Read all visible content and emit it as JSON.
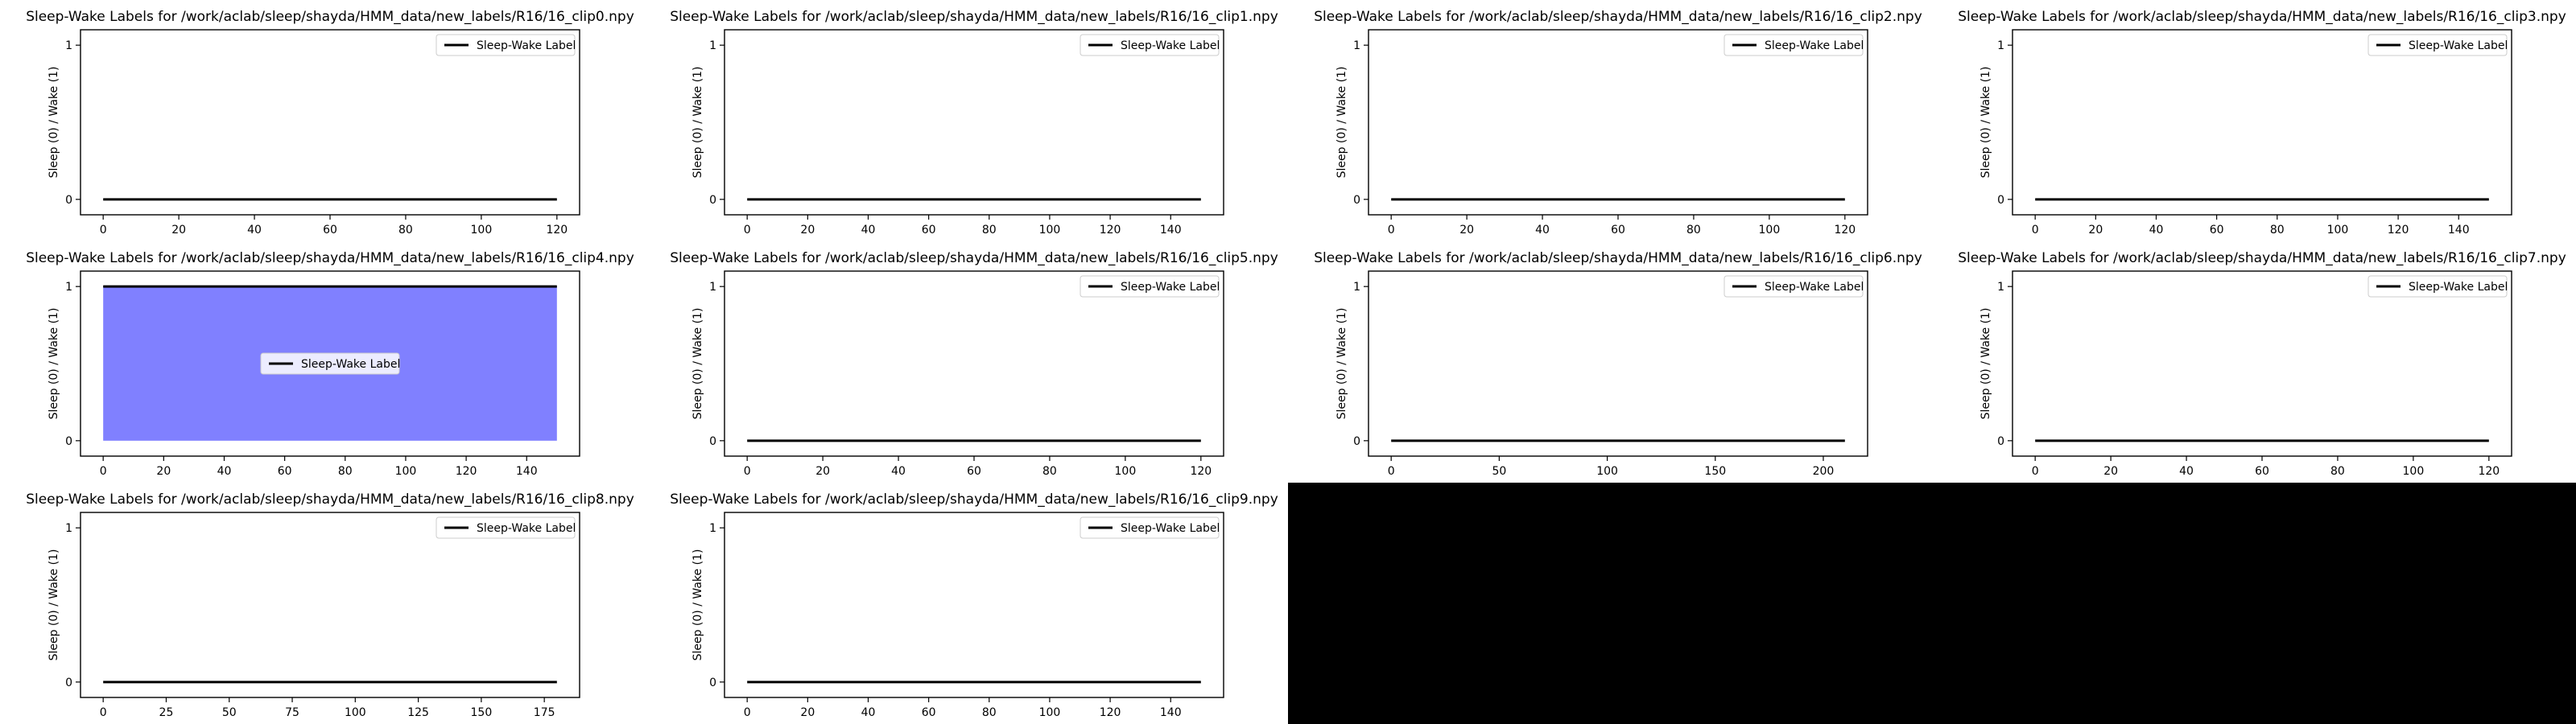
{
  "figure": {
    "background": "#ffffff",
    "mask_color": "#000000"
  },
  "chart_data": [
    {
      "type": "line",
      "title": "Sleep-Wake Labels for /work/aclab/sleep/shayda/HMM_data/new_labels/R16/16_clip0.npy",
      "ylabel": "Sleep (0) / Wake (1)",
      "xlabel": "",
      "xlim": [
        -6,
        126
      ],
      "ylim": [
        -0.1,
        1.1
      ],
      "xticks": [
        0,
        20,
        40,
        60,
        80,
        100,
        120
      ],
      "yticks": [
        0,
        1
      ],
      "legend": "top-right",
      "grid": false,
      "series": [
        {
          "name": "Sleep-Wake Label",
          "color": "#000000",
          "x": [
            0,
            120
          ],
          "y": [
            0,
            0
          ]
        }
      ],
      "fill": null
    },
    {
      "type": "line",
      "title": "Sleep-Wake Labels for /work/aclab/sleep/shayda/HMM_data/new_labels/R16/16_clip1.npy",
      "ylabel": "Sleep (0) / Wake (1)",
      "xlabel": "",
      "xlim": [
        -7.5,
        157.5
      ],
      "ylim": [
        -0.1,
        1.1
      ],
      "xticks": [
        0,
        20,
        40,
        60,
        80,
        100,
        120,
        140
      ],
      "yticks": [
        0,
        1
      ],
      "legend": "top-right",
      "grid": false,
      "series": [
        {
          "name": "Sleep-Wake Label",
          "color": "#000000",
          "x": [
            0,
            150
          ],
          "y": [
            0,
            0
          ]
        }
      ],
      "fill": null
    },
    {
      "type": "line",
      "title": "Sleep-Wake Labels for /work/aclab/sleep/shayda/HMM_data/new_labels/R16/16_clip2.npy",
      "ylabel": "Sleep (0) / Wake (1)",
      "xlabel": "",
      "xlim": [
        -6,
        126
      ],
      "ylim": [
        -0.1,
        1.1
      ],
      "xticks": [
        0,
        20,
        40,
        60,
        80,
        100,
        120
      ],
      "yticks": [
        0,
        1
      ],
      "legend": "top-right",
      "grid": false,
      "series": [
        {
          "name": "Sleep-Wake Label",
          "color": "#000000",
          "x": [
            0,
            120
          ],
          "y": [
            0,
            0
          ]
        }
      ],
      "fill": null
    },
    {
      "type": "line",
      "title": "Sleep-Wake Labels for /work/aclab/sleep/shayda/HMM_data/new_labels/R16/16_clip3.npy",
      "ylabel": "Sleep (0) / Wake (1)",
      "xlabel": "",
      "xlim": [
        -7.5,
        157.5
      ],
      "ylim": [
        -0.1,
        1.1
      ],
      "xticks": [
        0,
        20,
        40,
        60,
        80,
        100,
        120,
        140
      ],
      "yticks": [
        0,
        1
      ],
      "legend": "top-right",
      "grid": false,
      "series": [
        {
          "name": "Sleep-Wake Label",
          "color": "#000000",
          "x": [
            0,
            150
          ],
          "y": [
            0,
            0
          ]
        }
      ],
      "fill": null
    },
    {
      "type": "area",
      "title": "Sleep-Wake Labels for /work/aclab/sleep/shayda/HMM_data/new_labels/R16/16_clip4.npy",
      "ylabel": "Sleep (0) / Wake (1)",
      "xlabel": "",
      "xlim": [
        -7.5,
        157.5
      ],
      "ylim": [
        -0.1,
        1.1
      ],
      "xticks": [
        0,
        20,
        40,
        60,
        80,
        100,
        120,
        140
      ],
      "yticks": [
        0,
        1
      ],
      "legend": "center",
      "grid": false,
      "series": [
        {
          "name": "Sleep-Wake Label",
          "color": "#000000",
          "x": [
            0,
            150
          ],
          "y": [
            1,
            1
          ]
        }
      ],
      "fill": {
        "color": "#8080ff",
        "x": [
          0,
          150
        ],
        "y0": 0,
        "y1": 1
      }
    },
    {
      "type": "line",
      "title": "Sleep-Wake Labels for /work/aclab/sleep/shayda/HMM_data/new_labels/R16/16_clip5.npy",
      "ylabel": "Sleep (0) / Wake (1)",
      "xlabel": "",
      "xlim": [
        -6,
        126
      ],
      "ylim": [
        -0.1,
        1.1
      ],
      "xticks": [
        0,
        20,
        40,
        60,
        80,
        100,
        120
      ],
      "yticks": [
        0,
        1
      ],
      "legend": "top-right",
      "grid": false,
      "series": [
        {
          "name": "Sleep-Wake Label",
          "color": "#000000",
          "x": [
            0,
            120
          ],
          "y": [
            0,
            0
          ]
        }
      ],
      "fill": null
    },
    {
      "type": "line",
      "title": "Sleep-Wake Labels for /work/aclab/sleep/shayda/HMM_data/new_labels/R16/16_clip6.npy",
      "ylabel": "Sleep (0) / Wake (1)",
      "xlabel": "",
      "xlim": [
        -10.5,
        220.5
      ],
      "ylim": [
        -0.1,
        1.1
      ],
      "xticks": [
        0,
        50,
        100,
        150,
        200
      ],
      "yticks": [
        0,
        1
      ],
      "legend": "top-right",
      "grid": false,
      "series": [
        {
          "name": "Sleep-Wake Label",
          "color": "#000000",
          "x": [
            0,
            210
          ],
          "y": [
            0,
            0
          ]
        }
      ],
      "fill": null
    },
    {
      "type": "line",
      "title": "Sleep-Wake Labels for /work/aclab/sleep/shayda/HMM_data/new_labels/R16/16_clip7.npy",
      "ylabel": "Sleep (0) / Wake (1)",
      "xlabel": "",
      "xlim": [
        -6,
        126
      ],
      "ylim": [
        -0.1,
        1.1
      ],
      "xticks": [
        0,
        20,
        40,
        60,
        80,
        100,
        120
      ],
      "yticks": [
        0,
        1
      ],
      "legend": "top-right",
      "grid": false,
      "series": [
        {
          "name": "Sleep-Wake Label",
          "color": "#000000",
          "x": [
            0,
            120
          ],
          "y": [
            0,
            0
          ]
        }
      ],
      "fill": null
    },
    {
      "type": "line",
      "title": "Sleep-Wake Labels for /work/aclab/sleep/shayda/HMM_data/new_labels/R16/16_clip8.npy",
      "ylabel": "Sleep (0) / Wake (1)",
      "xlabel": "",
      "xlim": [
        -9,
        189
      ],
      "ylim": [
        -0.1,
        1.1
      ],
      "xticks": [
        0,
        25,
        50,
        75,
        100,
        125,
        150,
        175
      ],
      "yticks": [
        0,
        1
      ],
      "legend": "top-right",
      "grid": false,
      "series": [
        {
          "name": "Sleep-Wake Label",
          "color": "#000000",
          "x": [
            0,
            180
          ],
          "y": [
            0,
            0
          ]
        }
      ],
      "fill": null
    },
    {
      "type": "line",
      "title": "Sleep-Wake Labels for /work/aclab/sleep/shayda/HMM_data/new_labels/R16/16_clip9.npy",
      "ylabel": "Sleep (0) / Wake (1)",
      "xlabel": "",
      "xlim": [
        -7.5,
        157.5
      ],
      "ylim": [
        -0.1,
        1.1
      ],
      "xticks": [
        0,
        20,
        40,
        60,
        80,
        100,
        120,
        140
      ],
      "yticks": [
        0,
        1
      ],
      "legend": "top-right",
      "grid": false,
      "series": [
        {
          "name": "Sleep-Wake Label",
          "color": "#000000",
          "x": [
            0,
            150
          ],
          "y": [
            0,
            0
          ]
        }
      ],
      "fill": null
    }
  ]
}
